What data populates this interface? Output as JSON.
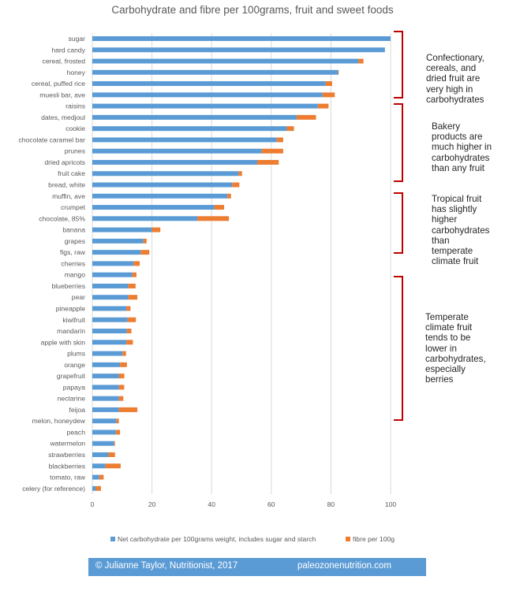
{
  "chart_data": {
    "type": "bar",
    "orientation": "horizontal",
    "stacked": true,
    "title": "Carbohydrate and fibre per 100grams, fruit and sweet foods",
    "xlabel": "",
    "ylabel": "",
    "xlim": [
      0,
      100
    ],
    "x_ticks": [
      0,
      20,
      40,
      60,
      80,
      100
    ],
    "grid": true,
    "legend_position": "bottom",
    "categories": [
      "sugar",
      "hard candy",
      "cereal, frosted",
      "honey",
      "cereal, puffed rice",
      "muesli bar, ave",
      "raisins",
      "dates, medjoul",
      "cookie",
      "chocolate caramel bar",
      "prunes",
      "dried apricots",
      "fruit cake",
      "bread, white",
      "muffin, ave",
      "crumpet",
      "chocolate, 85%",
      "banana",
      "grapes",
      "figs, raw",
      "cherries",
      "mango",
      "blueberries",
      "pear",
      "pineapple",
      "kiwifruit",
      "mandarin",
      "apple with skin",
      "plums",
      "orange",
      "grapefruit",
      "papaya",
      "nectarine",
      "feijoa",
      "melon, honeydew",
      "peach",
      "watermelon",
      "strawberries",
      "blackberries",
      "tomato, raw",
      "celery (for reference)"
    ],
    "series": [
      {
        "name": "Net carbohydrate per 100grams weight, includes sugar and starch",
        "color": "#5b9bd5",
        "values": [
          100,
          98.1,
          89.2,
          82.4,
          78.2,
          77.2,
          75.6,
          68.5,
          65.2,
          61.8,
          56.8,
          55.3,
          49.0,
          46.9,
          45.3,
          40.9,
          35.2,
          20.0,
          17.1,
          16.2,
          13.8,
          13.4,
          12.0,
          12.0,
          11.4,
          11.8,
          11.6,
          11.4,
          10.1,
          9.3,
          8.9,
          8.9,
          8.9,
          8.9,
          8.1,
          7.9,
          7.3,
          5.4,
          4.4,
          2.3,
          1.2
        ]
      },
      {
        "name": "fibre per 100g",
        "color": "#ed7d31",
        "values": [
          0,
          0,
          1.7,
          0.2,
          2.2,
          4.1,
          3.6,
          6.5,
          2.4,
          2.2,
          7.2,
          7.2,
          1.2,
          2.4,
          1.2,
          3.3,
          10.6,
          2.8,
          1.1,
          2.9,
          2.1,
          1.4,
          2.5,
          3.1,
          1.4,
          2.8,
          1.5,
          2.2,
          1.2,
          2.3,
          1.8,
          1.8,
          1.5,
          6.2,
          0.8,
          1.4,
          0.3,
          2.2,
          5.1,
          1.5,
          1.7
        ]
      }
    ],
    "annotations": [
      {
        "text": "Confectionary, cereals, and dried fruit are very high in carbohydrates",
        "range": [
          "sugar",
          "dates, medjoul"
        ],
        "lines": [
          "Confectionary,",
          "cereals, and",
          "dried fruit are",
          "very high in",
          "carbohydrates"
        ]
      },
      {
        "text": "Bakery products are much higher in carbohydrates than any fruit",
        "range": [
          "cookie",
          "chocolate, 85%"
        ],
        "lines": [
          "Bakery",
          "products are",
          "much higher in",
          "carbohydrates",
          "than any fruit"
        ]
      },
      {
        "text": "Tropical fruit has slightly higher carbohydrates than temperate climate fruit",
        "range": [
          "banana",
          "pineapple"
        ],
        "lines": [
          "Tropical fruit",
          "has slightly",
          "higher",
          "carbohydrates",
          "than",
          "temperate",
          "climate fruit"
        ]
      },
      {
        "text": "Temperate climate fruit tends to be lower in carbohydrates, especially berries",
        "range": [
          "kiwifruit",
          "celery (for reference)"
        ],
        "lines": [
          "Temperate",
          "climate fruit",
          "tends to be",
          "lower in",
          "carbohydrates,",
          "especially",
          "berries"
        ]
      }
    ],
    "bracket_color": "#c00000"
  },
  "legend": {
    "items": [
      {
        "label": "Net carbohydrate per 100grams weight, includes sugar and starch",
        "color": "#5b9bd5"
      },
      {
        "label": "fibre per 100g",
        "color": "#ed7d31"
      }
    ]
  },
  "footer": {
    "left": "© Julianne Taylor, Nutritionist, 2017",
    "right": "paleozonenutrition.com",
    "background": "#5b9bd5"
  }
}
